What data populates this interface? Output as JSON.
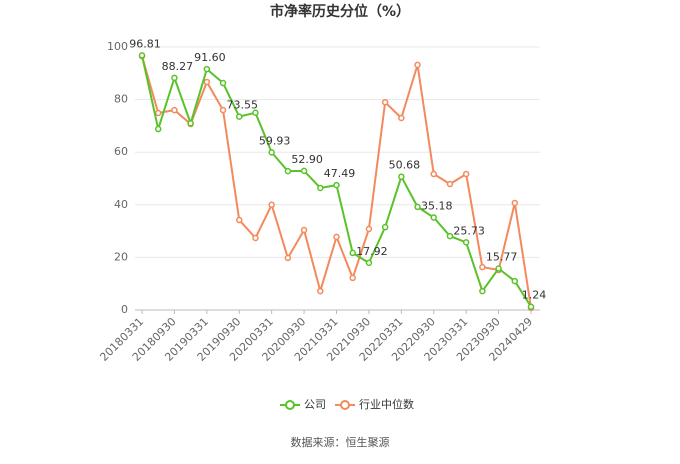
{
  "chart_data": {
    "type": "line",
    "title": "市净率历史分位（%）",
    "source": "数据来源：恒生聚源",
    "categories": [
      "20180331",
      null,
      "20180930",
      null,
      "20190331",
      null,
      "20190930",
      null,
      "20200331",
      null,
      "20200930",
      null,
      "20210331",
      null,
      "20210930",
      null,
      "20220331",
      null,
      "20220930",
      null,
      "20230331",
      null,
      "20230930",
      null,
      "20240429"
    ],
    "series": [
      {
        "name": "公司",
        "color": "#5ac229",
        "values": [
          96.81,
          68.8,
          88.27,
          71,
          91.6,
          86.3,
          73.55,
          75,
          59.93,
          52.8,
          52.9,
          46.4,
          47.49,
          21.7,
          17.92,
          31.5,
          50.68,
          39.2,
          35.18,
          28.1,
          25.73,
          7.2,
          15.77,
          11.0,
          1.24
        ],
        "value_labels": [
          "96.81",
          null,
          "88.27",
          null,
          "91.60",
          null,
          "73.55",
          null,
          "59.93",
          null,
          "52.90",
          null,
          "47.49",
          null,
          "17.92",
          null,
          "50.68",
          null,
          "35.18",
          null,
          "25.73",
          null,
          "15.77",
          null,
          "1.24"
        ]
      },
      {
        "name": "行业中位数",
        "color": "#f3895d",
        "values": [
          96.5,
          74.9,
          76,
          70.7,
          86.7,
          76,
          34.2,
          27.4,
          40,
          19.8,
          30.4,
          7.2,
          27.8,
          12.2,
          30.8,
          79,
          73,
          93.2,
          51.7,
          47.9,
          51.7,
          16.3,
          15.2,
          40.7,
          0.8
        ]
      }
    ],
    "ylim": [
      0,
      100
    ],
    "yticks": [
      0,
      20,
      40,
      60,
      80,
      100
    ],
    "grid": true,
    "legend": "bottom"
  }
}
